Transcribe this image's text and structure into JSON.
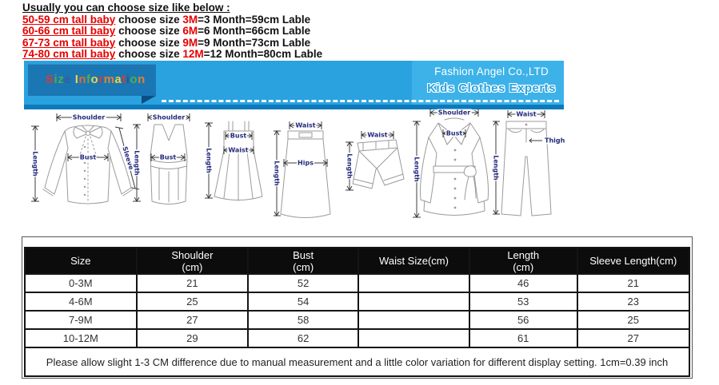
{
  "intro": {
    "title": "Usually you can choose size like below :",
    "lines": [
      {
        "range": "50-59 cm tall baby",
        "mid": " choose size ",
        "size": "3M",
        "rest": "=3 Month=59cm Lable"
      },
      {
        "range": "60-66 cm tall baby",
        "mid": " choose size ",
        "size": "6M",
        "rest": "=6 Month=66cm Lable"
      },
      {
        "range": "67-73 cm tall baby",
        "mid": " choose size ",
        "size": "9M",
        "rest": "=9 Month=73cm Lable"
      },
      {
        "range": "74-80 cm tall baby",
        "mid": " choose size ",
        "size": "12M",
        "rest": "=12 Month=80cm Lable"
      }
    ],
    "highlight_color": "#e60000",
    "text_color": "#111111"
  },
  "banner": {
    "title": "Size Information",
    "title_letter_colors": [
      "#e0392b",
      "#4caf50",
      "#4caf50",
      "#3a5ba0",
      "",
      "#e8d44c",
      "#e06a2c",
      "#4caf50",
      "#e8d44c",
      "#e0392b",
      "#e0822c",
      "#e8d44c",
      "#e03a2b",
      "#35508e",
      "#4caf50",
      "#e0822c"
    ],
    "company": "Fashion Angel Co.,LTD",
    "tagline": "Kids Clothes Experts",
    "bg_color": "#2aa2df",
    "box_color": "#1b76b4",
    "strip_color": "#0e7abc"
  },
  "diagrams": {
    "blouse": {
      "shoulder": "Shoulder",
      "length": "Length",
      "bust": "Bust",
      "sleeve": "Sleeve"
    },
    "tank": {
      "shoulder": "Shoulder",
      "length": "Length",
      "bust": "Bust"
    },
    "dress": {
      "bust": "Bust",
      "waist": "Waist",
      "length": "Length"
    },
    "skirt": {
      "waist": "Waist",
      "length": "Length",
      "hips": "Hips"
    },
    "shorts": {
      "waist": "Waist",
      "length": "Length"
    },
    "coat": {
      "shoulder": "Shoulder",
      "bust": "Bust",
      "length": "Length"
    },
    "pants": {
      "waist": "Waist",
      "length": "Length",
      "thigh": "Thigh"
    }
  },
  "size_table": {
    "headers": [
      "Size",
      "Shoulder\n(cm)",
      "Bust\n(cm)",
      "Waist Size(cm)",
      "Length\n(cm)",
      "Sleeve Length(cm)"
    ],
    "rows": [
      {
        "cells": [
          "0-3M",
          "21",
          "52",
          "",
          "46",
          "21"
        ]
      },
      {
        "cells": [
          "4-6M",
          "25",
          "54",
          "",
          "53",
          "23"
        ]
      },
      {
        "cells": [
          "7-9M",
          "27",
          "58",
          "",
          "56",
          "25"
        ]
      },
      {
        "cells": [
          "10-12M",
          "29",
          "62",
          "",
          "61",
          "27"
        ]
      }
    ],
    "note": "Please allow slight 1-3 CM difference due to manual measurement and a little color variation for different display setting. 1cm=0.39 inch"
  }
}
